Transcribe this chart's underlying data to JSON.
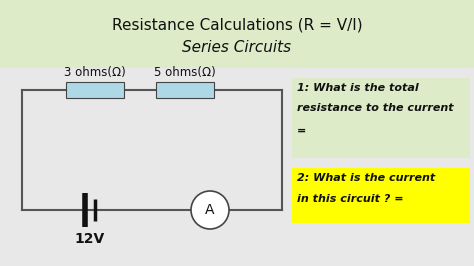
{
  "title_line1": "Resistance Calculations (R = V/I)",
  "title_line2": "Series Circuits",
  "title_bg": "#ddebc8",
  "bg_color": "#e8e8e8",
  "resistor1_label": "3 ohms(Ω)",
  "resistor2_label": "5 ohms(Ω)",
  "voltage_label": "12V",
  "ammeter_label": "A",
  "resistor_color": "#add8e6",
  "circuit_line_color": "#555555",
  "q1_bg": "#ddebc8",
  "q2_bg": "#ffff00",
  "q1_text_line1": "1: What is the total",
  "q1_text_line2": "resistance to the current",
  "q1_text_line3": "=",
  "q2_text_line1": "2: What is the current",
  "q2_text_line2": "in this circuit ? =",
  "font_color": "#111111",
  "battery_color": "#111111"
}
